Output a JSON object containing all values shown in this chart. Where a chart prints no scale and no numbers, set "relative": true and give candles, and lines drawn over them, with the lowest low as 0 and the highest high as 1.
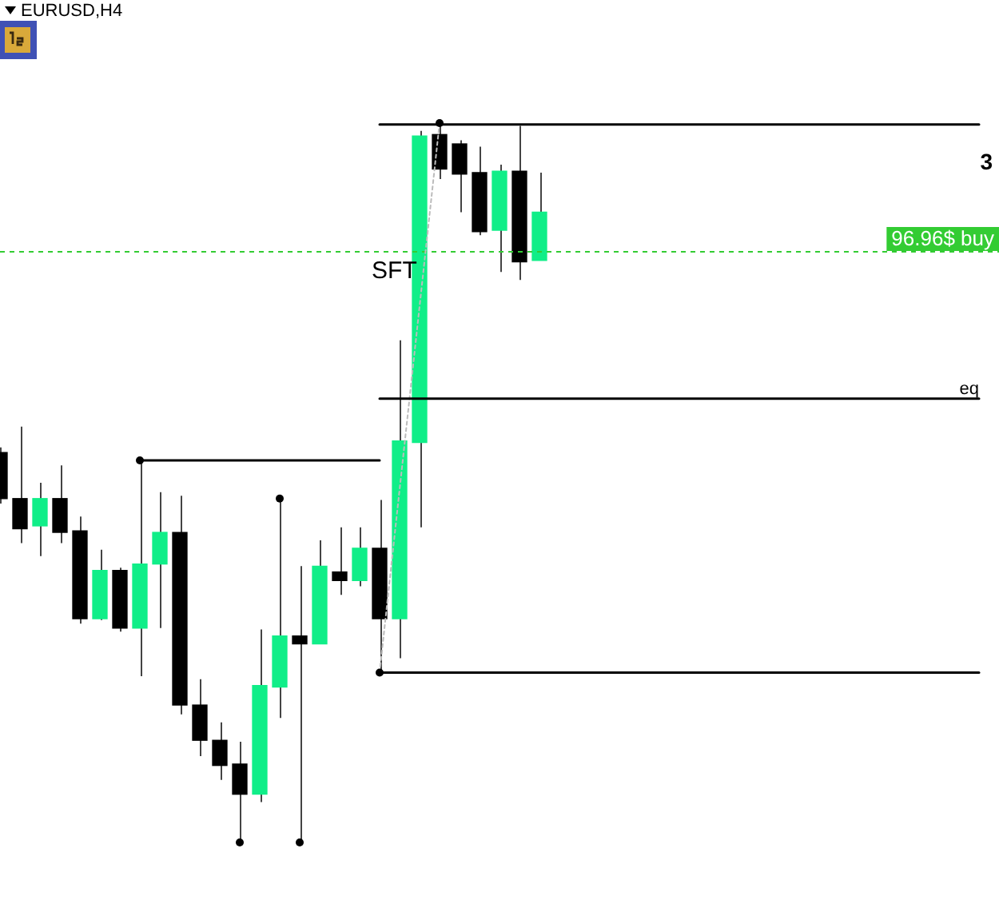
{
  "chart_data": {
    "type": "candlestick",
    "title": "EURUSD,H4",
    "relative": true,
    "categories": [
      null,
      null,
      null,
      null,
      null,
      null,
      null,
      null,
      null,
      null,
      null,
      null,
      null,
      null,
      null,
      null,
      null,
      null,
      null,
      null,
      null,
      null,
      null,
      null,
      null,
      null,
      null,
      null,
      null,
      null,
      null,
      null,
      null,
      null,
      null,
      null,
      null,
      null,
      null,
      null,
      null,
      null,
      null,
      null,
      null,
      null,
      null,
      null,
      null,
      null,
      null
    ],
    "ohlc": [
      [
        0.542,
        0.549,
        0.471,
        0.478
      ],
      [
        0.478,
        0.578,
        0.416,
        0.436
      ],
      [
        0.44,
        0.5,
        0.398,
        0.478
      ],
      [
        0.478,
        0.524,
        0.416,
        0.431
      ],
      [
        0.433,
        0.453,
        0.304,
        0.311
      ],
      [
        0.311,
        0.407,
        0.309,
        0.378
      ],
      [
        0.378,
        0.382,
        0.293,
        0.298
      ],
      [
        0.298,
        0.531,
        0.231,
        0.387
      ],
      [
        0.387,
        0.487,
        0.298,
        0.431
      ],
      [
        0.431,
        0.482,
        0.178,
        0.191
      ],
      [
        0.191,
        0.227,
        0.12,
        0.142
      ],
      [
        0.142,
        0.167,
        0.087,
        0.107
      ],
      [
        0.109,
        0.14,
        0,
        0.067
      ],
      [
        0.067,
        0.296,
        0.056,
        0.218
      ],
      [
        0.216,
        0.478,
        0.173,
        0.287
      ],
      [
        0.287,
        0.384,
        0,
        0.276
      ],
      [
        0.276,
        0.42,
        0.276,
        0.384
      ],
      [
        0.376,
        0.438,
        0.344,
        0.364
      ],
      [
        0.364,
        0.438,
        0.356,
        0.409
      ],
      [
        0.409,
        0.476,
        0.236,
        0.311
      ],
      [
        0.311,
        0.698,
        0.256,
        0.558
      ],
      [
        0.556,
        0.989,
        0.438,
        0.982
      ],
      [
        0.984,
        1,
        0.922,
        0.936
      ],
      [
        0.971,
        0.976,
        0.876,
        0.929
      ],
      [
        0.931,
        0.967,
        0.844,
        0.849
      ],
      [
        0.851,
        0.942,
        0.793,
        0.933
      ],
      [
        0.933,
        0.996,
        0.782,
        0.807
      ],
      [
        0.809,
        0.931,
        0.809,
        0.876
      ],
      null,
      null,
      null,
      null,
      null,
      null,
      null,
      null,
      null,
      null,
      null,
      null,
      null,
      null,
      null,
      null,
      null,
      null,
      null,
      null,
      null,
      null,
      null
    ],
    "colors": [
      "#000000",
      "#000000",
      "#10ee88",
      "#000000",
      "#000000",
      "#10ee88",
      "#000000",
      "#10ee88",
      "#10ee88",
      "#000000",
      "#000000",
      "#000000",
      "#000000",
      "#10ee88",
      "#10ee88",
      "#000000",
      "#10ee88",
      "#000000",
      "#10ee88",
      "#000000",
      "#10ee88",
      "#10ee88",
      "#000000",
      "#000000",
      "#000000",
      "#10ee88",
      "#000000",
      "#10ee88",
      null,
      null,
      null,
      null,
      null,
      null,
      null,
      null,
      null,
      null,
      null,
      null,
      null,
      null,
      null,
      null,
      null,
      null,
      null,
      null,
      null,
      null,
      null
    ],
    "series": [
      {
        "type": "line",
        "color": "#000000",
        "values": [
          null,
          null,
          null,
          null,
          null,
          null,
          null,
          0.531,
          0.531,
          0.531,
          0.531,
          0.531,
          0.531,
          0.531,
          0.531,
          0.531,
          0.531,
          0.531,
          0.531,
          0.531,
          null,
          null,
          null,
          null,
          null,
          null,
          null,
          null,
          null,
          null,
          null,
          null,
          null,
          null,
          null,
          null,
          null,
          null,
          null,
          null,
          null,
          null,
          null,
          null,
          null,
          null,
          null,
          null,
          null,
          null,
          null
        ]
      },
      {
        "type": "line",
        "color": "#000000",
        "values": [
          null,
          null,
          null,
          null,
          null,
          null,
          null,
          null,
          null,
          null,
          null,
          null,
          null,
          null,
          null,
          null,
          null,
          null,
          null,
          0.998,
          0.998,
          0.998,
          0.998,
          0.998,
          0.998,
          0.998,
          0.998,
          0.998,
          0.998,
          0.998,
          0.998,
          0.998,
          0.998,
          0.998,
          0.998,
          0.998,
          0.998,
          0.998,
          0.998,
          0.998,
          0.998,
          0.998,
          0.998,
          0.998,
          0.998,
          0.998,
          0.998,
          0.998,
          0.998,
          0.998,
          null
        ]
      },
      {
        "type": "line",
        "name": "eq",
        "color": "#000000",
        "values": [
          null,
          null,
          null,
          null,
          null,
          null,
          null,
          null,
          null,
          null,
          null,
          null,
          null,
          null,
          null,
          null,
          null,
          null,
          null,
          0.617,
          0.617,
          0.617,
          0.617,
          0.617,
          0.617,
          0.617,
          0.617,
          0.617,
          0.617,
          0.617,
          0.617,
          0.617,
          0.617,
          0.617,
          0.617,
          0.617,
          0.617,
          0.617,
          0.617,
          0.617,
          0.617,
          0.617,
          0.617,
          0.617,
          0.617,
          0.617,
          0.617,
          0.617,
          0.617,
          0.617,
          null
        ]
      },
      {
        "type": "line",
        "color": "#000000",
        "values": [
          null,
          null,
          null,
          null,
          null,
          null,
          null,
          null,
          null,
          null,
          null,
          null,
          null,
          null,
          null,
          null,
          null,
          null,
          null,
          0.236,
          0.236,
          0.236,
          0.236,
          0.236,
          0.236,
          0.236,
          0.236,
          0.236,
          0.236,
          0.236,
          0.236,
          0.236,
          0.236,
          0.236,
          0.236,
          0.236,
          0.236,
          0.236,
          0.236,
          0.236,
          0.236,
          0.236,
          0.236,
          0.236,
          0.236,
          0.236,
          0.236,
          0.236,
          0.236,
          0.236,
          null
        ]
      },
      {
        "type": "line",
        "name": "SFT",
        "color": "#bcbcbc",
        "line_style": "dotted",
        "values": [
          null,
          null,
          null,
          null,
          null,
          null,
          null,
          null,
          null,
          null,
          null,
          null,
          null,
          null,
          null,
          null,
          null,
          null,
          null,
          0.236,
          null,
          null,
          1,
          null,
          null,
          null,
          null,
          null,
          null,
          null,
          null,
          null,
          null,
          null,
          null,
          null,
          null,
          null,
          null,
          null,
          null,
          null,
          null,
          null,
          null,
          null,
          null,
          null,
          null,
          null,
          null
        ]
      },
      {
        "type": "scatter",
        "color": "#000000",
        "marker": "circle",
        "values": [
          null,
          null,
          null,
          null,
          null,
          null,
          null,
          0.531,
          null,
          null,
          null,
          null,
          0,
          null,
          0.478,
          0,
          null,
          null,
          null,
          0.236,
          null,
          null,
          1,
          null,
          null,
          null,
          null,
          null,
          null,
          null,
          null,
          null,
          null,
          null,
          null,
          null,
          null,
          null,
          null,
          null,
          null,
          null,
          null,
          null,
          null,
          null,
          null,
          null,
          null,
          null,
          null
        ]
      }
    ],
    "ref_lines": [
      {
        "axis": "y",
        "value": 0.822,
        "label": "96.96$ buy",
        "color": "#33cc33",
        "line_style": "dashed"
      }
    ],
    "annotations": [
      "3"
    ]
  }
}
